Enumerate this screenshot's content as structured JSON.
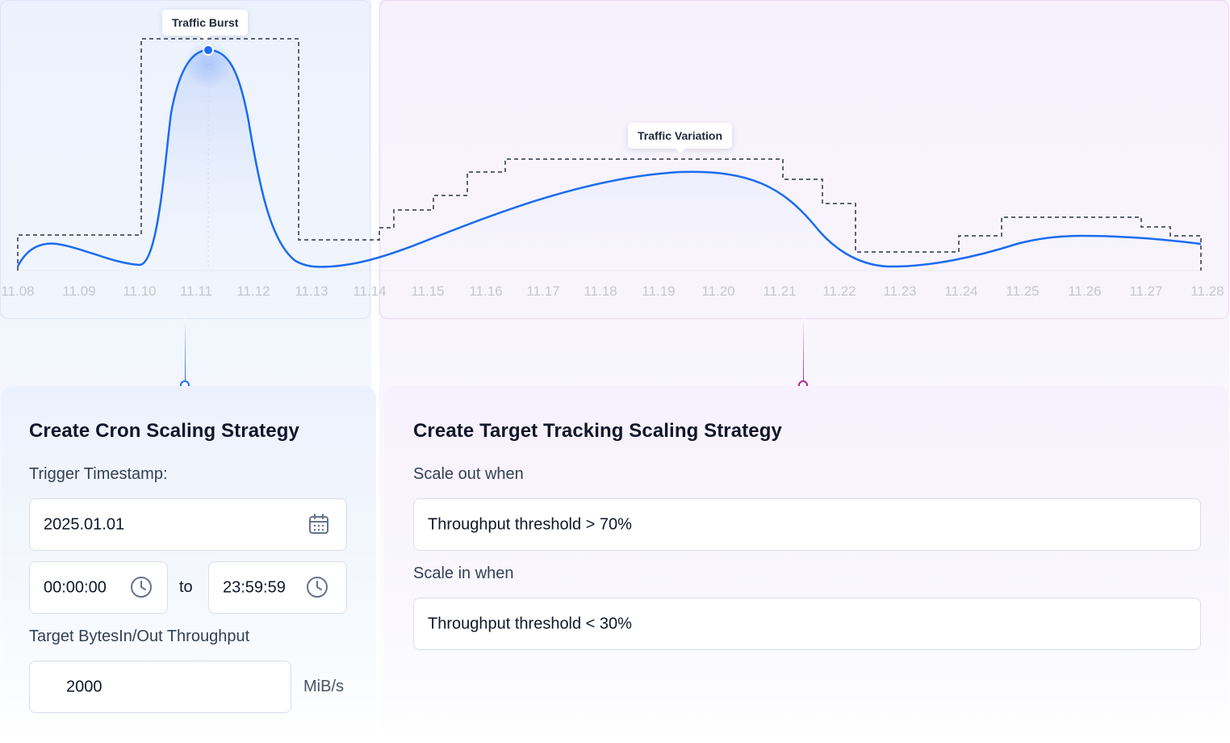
{
  "chart_data": {
    "type": "line",
    "x_ticks": [
      "11.08",
      "11.09",
      "11.10",
      "11.11",
      "11.12",
      "11.13",
      "11.14",
      "11.15",
      "11.16",
      "11.17",
      "11.18",
      "11.19",
      "11.20",
      "11.21",
      "11.22",
      "11.23",
      "11.24",
      "11.25",
      "11.26",
      "11.27",
      "11.28"
    ],
    "annotations": [
      {
        "label": "Traffic Burst",
        "x": "11.11"
      },
      {
        "label": "Traffic Variation",
        "x": "11.19"
      }
    ],
    "colors": {
      "line": "#1a6cf0",
      "capacity": "#5b6474",
      "tick": "#c3c8d1",
      "burst_connector": "#1a6cf0",
      "variation_connector": "#b0259f"
    }
  },
  "cron": {
    "title": "Create Cron Scaling Strategy",
    "trigger_label": "Trigger Timestamp:",
    "date_value": "2025.01.01",
    "start_time": "00:00:00",
    "to_label": "to",
    "end_time": "23:59:59",
    "throughput_label": "Target BytesIn/Out Throughput",
    "throughput_value": "2000",
    "unit": "MiB/s"
  },
  "target": {
    "title": "Create Target Tracking Scaling Strategy",
    "scale_out_label": "Scale out when",
    "scale_out_value": "Throughput threshold > 70%",
    "scale_in_label": "Scale in when",
    "scale_in_value": "Throughput threshold < 30%"
  }
}
